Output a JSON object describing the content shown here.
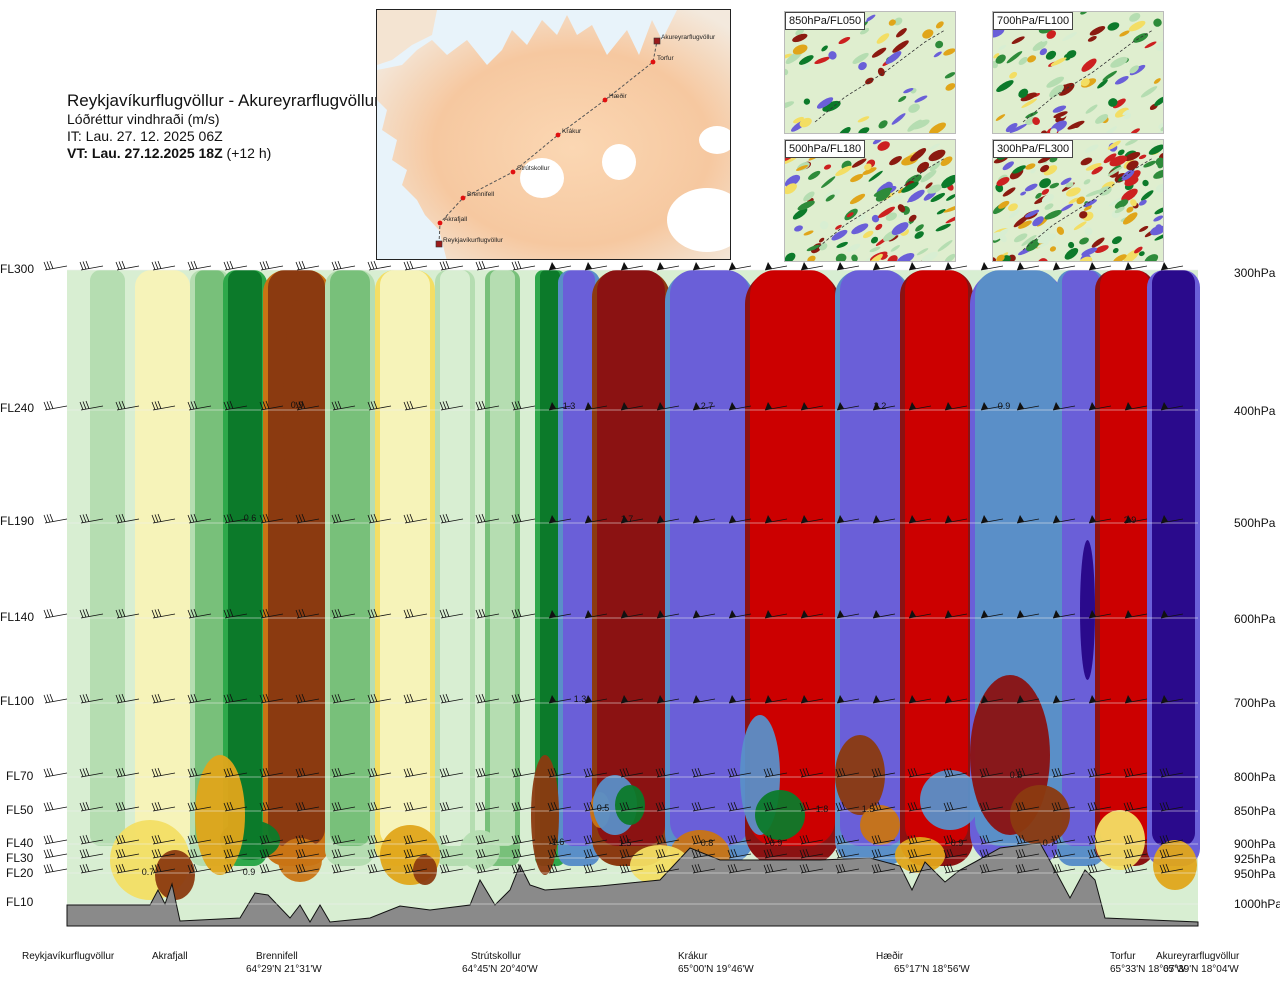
{
  "header": {
    "route": "Reykjavíkurflugvöllur - Akureyrarflugvöllur",
    "parameter": "Lóðréttur vindhraði (m/s)",
    "it": "IT: Lau. 27. 12. 2025 06Z",
    "vt_bold": "VT: Lau. 27.12.2025 18Z",
    "vt_rest": " (+12 h)"
  },
  "map": {
    "waypoints": [
      "Akureyrarflugvöllur",
      "Torfur",
      "Hæðir",
      "Krákur",
      "Strútskollur",
      "Brennifell",
      "Akrafjall",
      "Reykjavíkurflugvöllur"
    ]
  },
  "thumbnails": [
    "850hPa/FL050",
    "700hPa/FL100",
    "500hPa/FL180",
    "300hPa/FL300"
  ],
  "left_levels": [
    "FL300",
    "FL240",
    "FL190",
    "FL140",
    "FL100",
    "FL70",
    "FL50",
    "FL40",
    "FL30",
    "FL20",
    "FL10"
  ],
  "right_levels": [
    "300hPa",
    "400hPa",
    "500hPa",
    "600hPa",
    "700hPa",
    "800hPa",
    "850hPa",
    "900hPa",
    "925hPa",
    "950hPa",
    "1000hPa"
  ],
  "stations": [
    {
      "name": "Reykjavíkurflugvöllur",
      "coord": ""
    },
    {
      "name": "Akrafjall",
      "coord": ""
    },
    {
      "name": "Brennifell",
      "coord": "64°29'N 21°31'W"
    },
    {
      "name": "Strútskollur",
      "coord": "64°45'N 20°40'W"
    },
    {
      "name": "Krákur",
      "coord": "65°00'N 19°46'W"
    },
    {
      "name": "Hæðir",
      "coord": "65°17'N 18°56'W"
    },
    {
      "name": "Torfur",
      "coord": "65°33'N 18°07'W"
    },
    {
      "name": "Akureyrarflugvöllur",
      "coord": "65°39'N 18°04'W"
    }
  ],
  "chart_data": {
    "type": "heatmap",
    "title": "Reykjavíkurflugvöllur - Akureyrarflugvöllur",
    "variable": "Lóðréttur vindhraði (m/s)",
    "y_axis_left": [
      "FL300",
      "FL240",
      "FL190",
      "FL140",
      "FL100",
      "FL70",
      "FL50",
      "FL40",
      "FL30",
      "FL20",
      "FL10"
    ],
    "y_axis_right": [
      "300hPa",
      "400hPa",
      "500hPa",
      "600hPa",
      "700hPa",
      "800hPa",
      "850hPa",
      "900hPa",
      "925hPa",
      "950hPa",
      "1000hPa"
    ],
    "x_axis": [
      "Reykjavíkurflugvöllur",
      "Akrafjall",
      "Brennifell",
      "Strútskollur",
      "Krákur",
      "Hæðir",
      "Torfur",
      "Akureyrarflugvöllur"
    ],
    "contour_labels": [
      "0.9",
      "0.6",
      "1.3",
      "1.7",
      "2.7",
      "2.2",
      "0.9",
      "2.9",
      "1.3",
      "0.5",
      "0.7",
      "0.9",
      "1.6",
      "1.5",
      "0.8",
      "0.9",
      "1.8",
      "1.5",
      "0.9",
      "0.7",
      "0.5"
    ],
    "palette": [
      "#2a0a8c",
      "#6a5fd8",
      "#5a8fc8",
      "#0c7a2a",
      "#2ea84a",
      "#78c07a",
      "#b5ddb1",
      "#d8eed2",
      "#f6f3b9",
      "#f3de64",
      "#e0a51a",
      "#c97414",
      "#8b3a10",
      "#8b1212",
      "#cc0000"
    ]
  }
}
